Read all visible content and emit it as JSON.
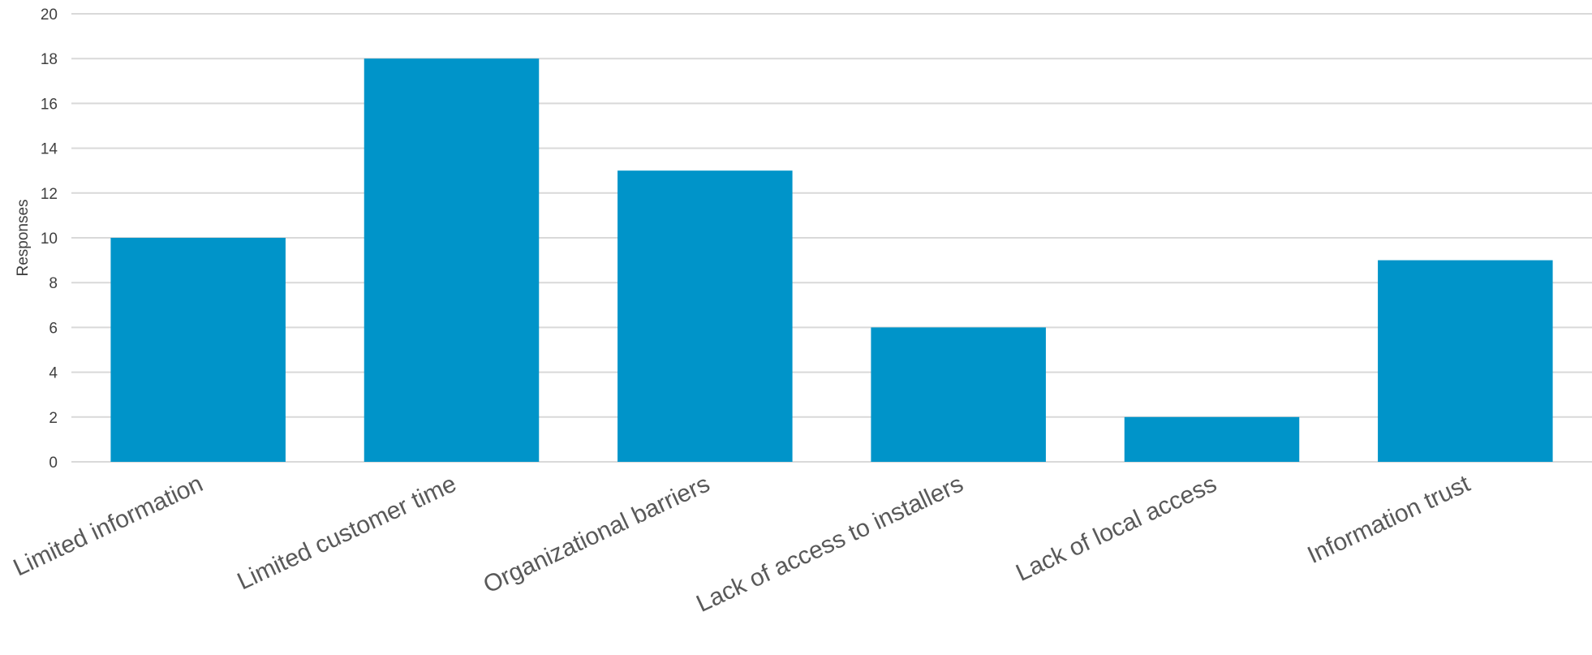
{
  "chart_data": {
    "type": "bar",
    "title": "",
    "xlabel": "",
    "ylabel": "Responses",
    "categories": [
      "Limited information",
      "Limited customer time",
      "Organizational barriers",
      "Lack of access to installers",
      "Lack of local access",
      "Information trust"
    ],
    "values": [
      10,
      18,
      13,
      6,
      2,
      9
    ],
    "ylim": [
      0,
      20
    ],
    "yticks": [
      "0",
      "2",
      "4",
      "6",
      "8",
      "10",
      "12",
      "14",
      "16",
      "18",
      "20"
    ],
    "grid": true,
    "legend": "none",
    "bar_color": "#0094C9",
    "grid_color": "#D9D9D9"
  }
}
